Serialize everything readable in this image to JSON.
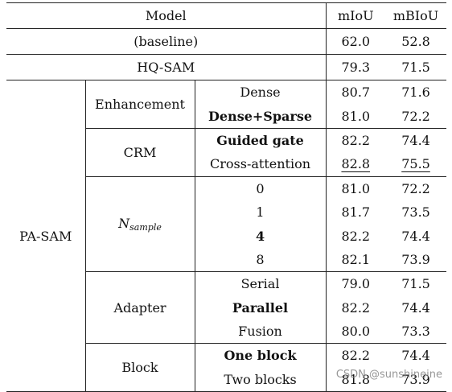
{
  "header": {
    "model": "Model",
    "miou": "mIoU",
    "mbiou": "mBIoU"
  },
  "top_rows": [
    {
      "label": "(baseline)",
      "miou": "62.0",
      "mbiou": "52.8"
    },
    {
      "label": "HQ-SAM",
      "miou": "79.3",
      "mbiou": "71.5"
    }
  ],
  "pa_sam": {
    "label": "PA-SAM",
    "groups": [
      {
        "name": "Enhancement",
        "rows": [
          {
            "variant": "Dense",
            "miou": "80.7",
            "mbiou": "71.6"
          },
          {
            "variant": "Dense+Sparse",
            "miou": "81.0",
            "mbiou": "72.2"
          }
        ]
      },
      {
        "name": "CRM",
        "rows": [
          {
            "variant": "Guided gate",
            "miou": "82.2",
            "mbiou": "74.4"
          },
          {
            "variant": "Cross-attention",
            "miou": "82.8",
            "mbiou": "75.5"
          }
        ]
      },
      {
        "name": "N",
        "name_sub": "sample",
        "rows": [
          {
            "variant": "0",
            "miou": "81.0",
            "mbiou": "72.2"
          },
          {
            "variant": "1",
            "miou": "81.7",
            "mbiou": "73.5"
          },
          {
            "variant": "4",
            "miou": "82.2",
            "mbiou": "74.4"
          },
          {
            "variant": "8",
            "miou": "82.1",
            "mbiou": "73.9"
          }
        ]
      },
      {
        "name": "Adapter",
        "rows": [
          {
            "variant": "Serial",
            "miou": "79.0",
            "mbiou": "71.5"
          },
          {
            "variant": "Parallel",
            "miou": "82.2",
            "mbiou": "74.4"
          },
          {
            "variant": "Fusion",
            "miou": "80.0",
            "mbiou": "73.3"
          }
        ]
      },
      {
        "name": "Block",
        "rows": [
          {
            "variant": "One block",
            "miou": "82.2",
            "mbiou": "74.4"
          },
          {
            "variant": "Two blocks",
            "miou": "81.8",
            "mbiou": "73.9"
          }
        ]
      }
    ]
  },
  "watermark": "CSDN @sunshineine"
}
